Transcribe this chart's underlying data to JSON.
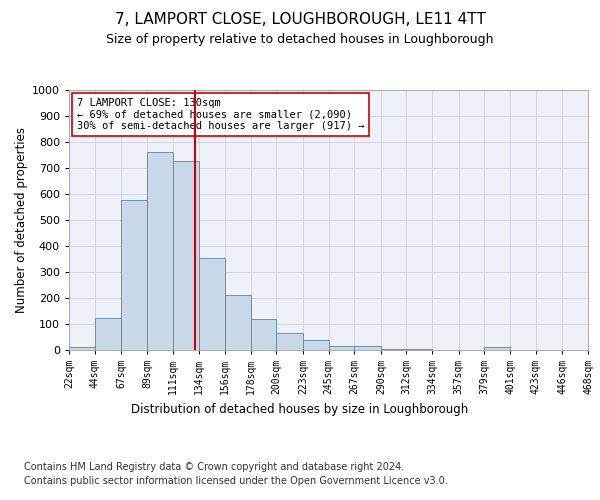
{
  "title": "7, LAMPORT CLOSE, LOUGHBOROUGH, LE11 4TT",
  "subtitle": "Size of property relative to detached houses in Loughborough",
  "xlabel": "Distribution of detached houses by size in Loughborough",
  "ylabel": "Number of detached properties",
  "footnote1": "Contains HM Land Registry data © Crown copyright and database right 2024.",
  "footnote2": "Contains public sector information licensed under the Open Government Licence v3.0.",
  "annotation_line1": "7 LAMPORT CLOSE: 130sqm",
  "annotation_line2": "← 69% of detached houses are smaller (2,090)",
  "annotation_line3": "30% of semi-detached houses are larger (917) →",
  "bar_color": "#c8d8e8",
  "bar_edge_color": "#5588aa",
  "vline_color": "#cc0000",
  "vline_x": 130,
  "bin_edges": [
    22,
    44,
    67,
    89,
    111,
    134,
    156,
    178,
    200,
    223,
    245,
    267,
    290,
    312,
    334,
    357,
    379,
    401,
    423,
    446,
    468
  ],
  "bar_heights": [
    10,
    125,
    575,
    760,
    725,
    355,
    210,
    120,
    65,
    40,
    15,
    15,
    5,
    5,
    0,
    0,
    10,
    0,
    0,
    0
  ],
  "ylim": [
    0,
    1000
  ],
  "yticks": [
    0,
    100,
    200,
    300,
    400,
    500,
    600,
    700,
    800,
    900,
    1000
  ],
  "grid_color": "#d0d0e0",
  "background_color": "#eef2f8",
  "title_fontsize": 11,
  "subtitle_fontsize": 9,
  "footnote_fontsize": 7
}
